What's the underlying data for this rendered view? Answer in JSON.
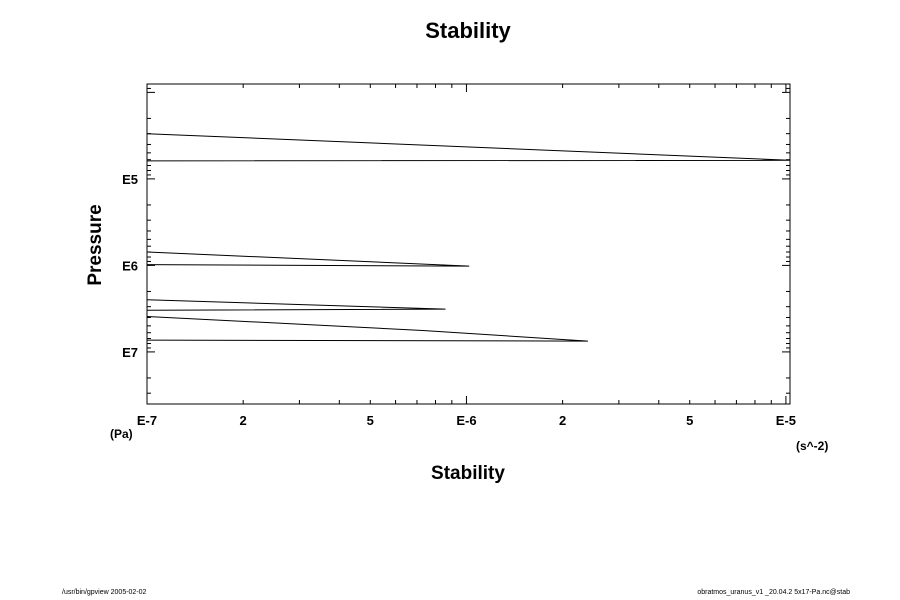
{
  "chart_data": {
    "type": "line",
    "title": "Stability",
    "xlabel": "Stability",
    "ylabel": "Pressure",
    "x_unit": "(s^-2)",
    "y_unit": "(Pa)",
    "x_scale": "log",
    "y_scale": "log",
    "y_inverted": true,
    "xlim": [
      1e-07,
      1.03e-05
    ],
    "ylim": [
      8000,
      40000000
    ],
    "x_ticks": [
      {
        "value": 1e-07,
        "label": "E-7"
      },
      {
        "value": 2e-07,
        "label": "2"
      },
      {
        "value": 5e-07,
        "label": "5"
      },
      {
        "value": 1e-06,
        "label": "E-6"
      },
      {
        "value": 2e-06,
        "label": "2"
      },
      {
        "value": 5e-06,
        "label": "5"
      },
      {
        "value": 1e-05,
        "label": "E-5"
      }
    ],
    "y_ticks": [
      {
        "value": 100000,
        "label": "E5"
      },
      {
        "value": 1000000,
        "label": "E6"
      },
      {
        "value": 10000000,
        "label": "E7"
      }
    ],
    "grid": false,
    "series": [
      {
        "color": "#000000",
        "points": [
          [
            1e-07,
            30000
          ],
          [
            1.03e-05,
            61000
          ],
          [
            1e-07,
            62000
          ],
          [
            1e-07,
            null
          ],
          [
            1e-07,
            700000
          ],
          [
            1.02e-06,
            1020000
          ],
          [
            1e-07,
            980000
          ],
          [
            1e-07,
            null
          ],
          [
            1e-07,
            2500000
          ],
          [
            8.6e-07,
            3200000
          ],
          [
            1e-07,
            3300000
          ],
          [
            1e-07,
            null
          ],
          [
            1e-07,
            3900000
          ],
          [
            7.3e-07,
            5650000
          ],
          [
            2.4e-06,
            7500000
          ],
          [
            1e-07,
            7300000
          ]
        ]
      }
    ]
  },
  "footer": {
    "left": "/usr/bin/gpview 2005-02-02",
    "right": "obratmos_uranus_v1 _20.04.2 5x17-Pa.nc@stab"
  }
}
